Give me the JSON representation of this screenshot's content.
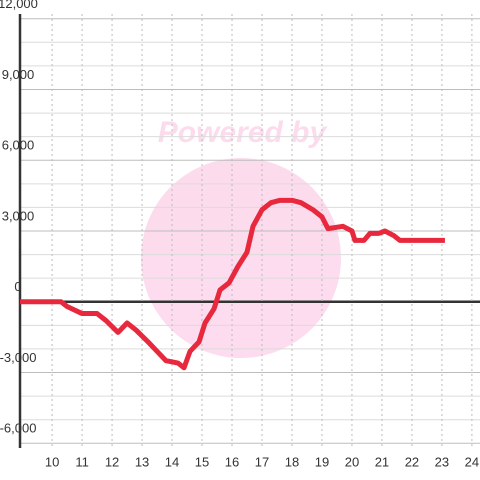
{
  "chart_data": {
    "type": "line",
    "watermark": "Powered by",
    "x": [
      8.93,
      10.3,
      10.5,
      11,
      11.5,
      11.8,
      12.2,
      12.5,
      12.8,
      13.2,
      13.5,
      13.8,
      14.2,
      14.4,
      14.6,
      14.9,
      15.1,
      15.4,
      15.6,
      15.9,
      16.2,
      16.5,
      16.7,
      17,
      17.3,
      17.6,
      18,
      18.3,
      18.7,
      19,
      19.2,
      19.7,
      20,
      20.1,
      20.4,
      20.6,
      20.9,
      21.1,
      21.4,
      21.6,
      23.1
    ],
    "series": [
      {
        "color": "#e8283c",
        "values": [
          0,
          0,
          -200,
          -500,
          -500,
          -800,
          -1300,
          -900,
          -1200,
          -1700,
          -2100,
          -2500,
          -2600,
          -2800,
          -2100,
          -1700,
          -900,
          -300,
          500,
          800,
          1500,
          2100,
          3200,
          3900,
          4200,
          4300,
          4300,
          4200,
          3900,
          3600,
          3100,
          3200,
          3000,
          2600,
          2600,
          2900,
          2900,
          3000,
          2800,
          2600,
          2600
        ]
      }
    ],
    "xlim": [
      8.93,
      24.27
    ],
    "xticks": [
      10,
      11,
      12,
      13,
      14,
      15,
      16,
      17,
      18,
      19,
      20,
      21,
      22,
      23,
      24
    ],
    "ylim": [
      -6200,
      12200
    ],
    "yticks": [
      {
        "value": -6000,
        "label": "-6,000"
      },
      {
        "value": -3000,
        "label": "-3,000"
      },
      0,
      {
        "value": 3000,
        "label": "3,000"
      },
      {
        "value": 6000,
        "label": "6,000"
      },
      {
        "value": 9000,
        "label": "9,000"
      },
      {
        "value": 12000,
        "label": "12,000"
      }
    ],
    "yminorticks": [
      -5000,
      -4000,
      -2000,
      -1000,
      1000,
      2000,
      4000,
      5000,
      7000,
      8000,
      10000,
      11000
    ],
    "grid": true
  }
}
